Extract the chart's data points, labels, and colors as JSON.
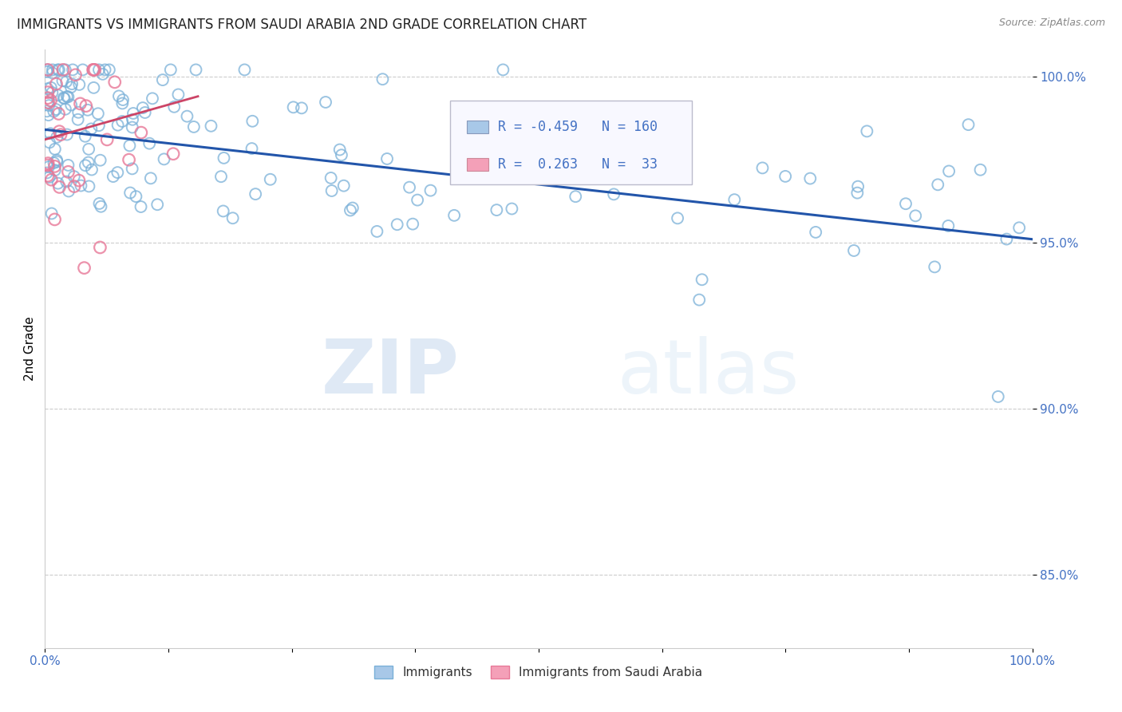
{
  "title": "IMMIGRANTS VS IMMIGRANTS FROM SAUDI ARABIA 2ND GRADE CORRELATION CHART",
  "source_text": "Source: ZipAtlas.com",
  "ylabel": "2nd Grade",
  "watermark_zip": "ZIP",
  "watermark_atlas": "atlas",
  "legend_blue_r": "-0.459",
  "legend_blue_n": "160",
  "legend_pink_r": "0.263",
  "legend_pink_n": "33",
  "blue_color": "#a8c8e8",
  "blue_edge_color": "#7ab0d8",
  "pink_color": "#f4a0b8",
  "pink_edge_color": "#e87898",
  "line_blue_color": "#2255aa",
  "line_pink_color": "#cc4466",
  "axis_label_color": "#4472c4",
  "title_color": "#222222",
  "grid_color": "#cccccc",
  "background_color": "#ffffff",
  "xmin": 0.0,
  "xmax": 1.0,
  "ymin": 0.828,
  "ymax": 1.008,
  "ytick_positions": [
    0.85,
    0.9,
    0.95,
    1.0
  ],
  "ytick_labels": [
    "85.0%",
    "90.0%",
    "95.0%",
    "100.0%"
  ],
  "xtick_positions": [
    0.0,
    0.125,
    0.25,
    0.375,
    0.5,
    0.625,
    0.75,
    0.875,
    1.0
  ],
  "xtick_labels": [
    "0.0%",
    "",
    "",
    "",
    "",
    "",
    "",
    "",
    "100.0%"
  ],
  "blue_line_x0": 0.0,
  "blue_line_x1": 1.0,
  "blue_line_y0": 0.984,
  "blue_line_y1": 0.951,
  "pink_line_x0": 0.0,
  "pink_line_x1": 0.155,
  "pink_line_y0": 0.981,
  "pink_line_y1": 0.994
}
